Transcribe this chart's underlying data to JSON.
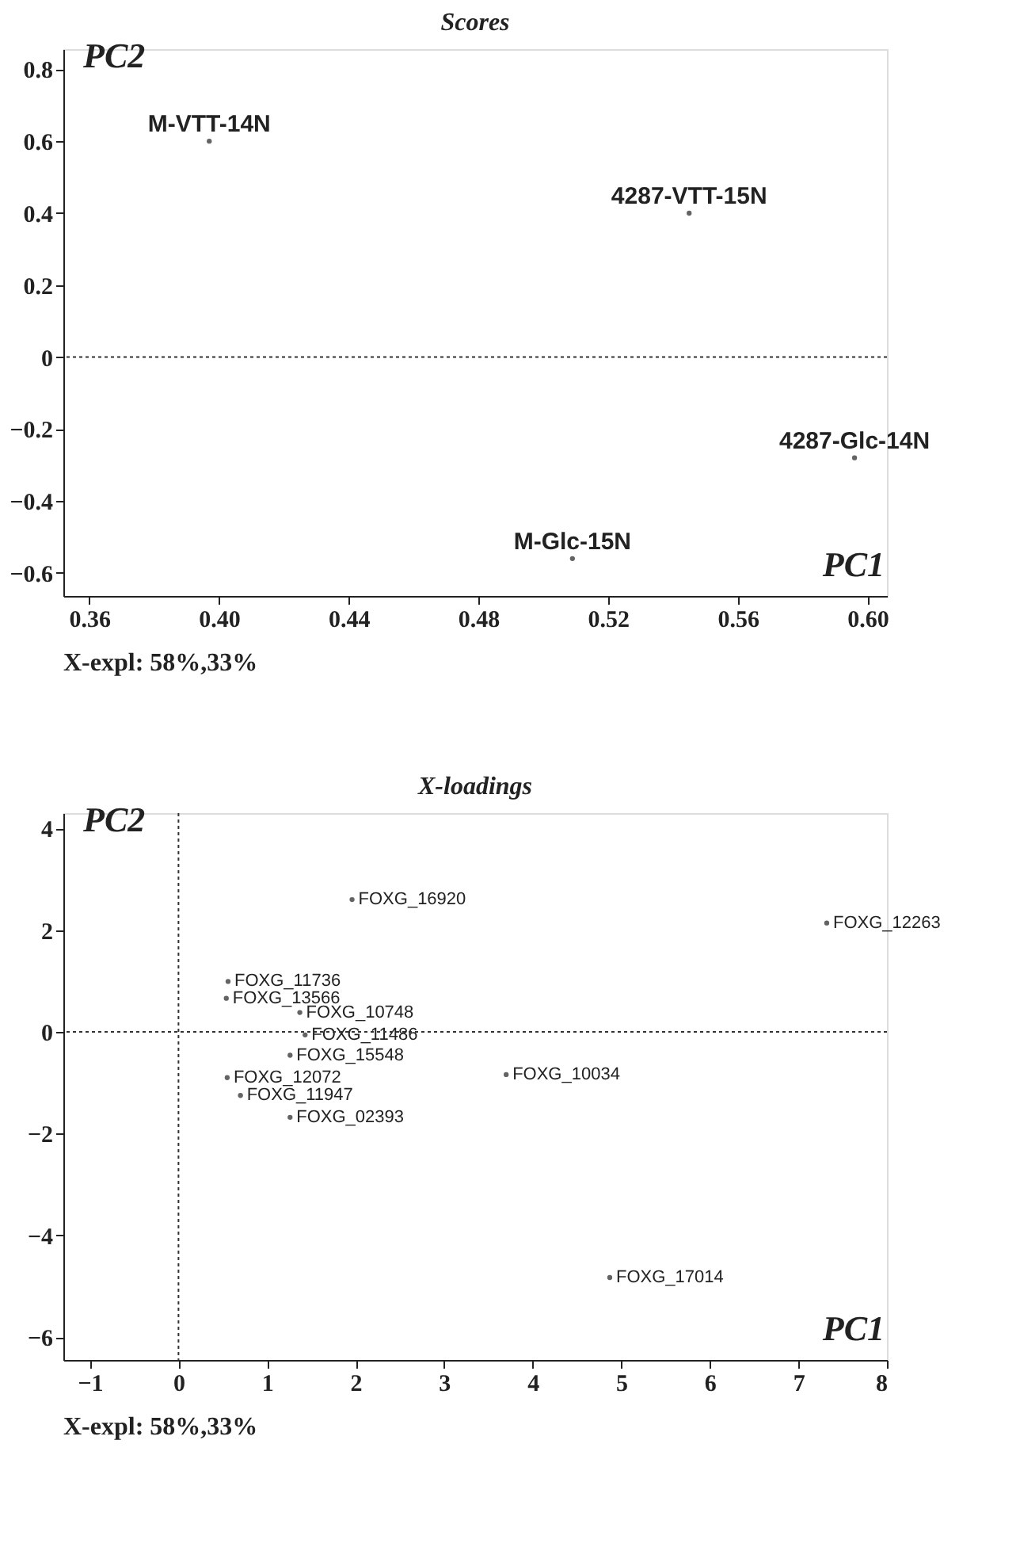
{
  "chart_data": [
    {
      "type": "scatter",
      "title": "Scores",
      "xlabel": "PC1",
      "ylabel": "PC2",
      "marker": "circle",
      "grid": false,
      "color": "#222222",
      "series": [
        {
          "name": "M-VTT-14N",
          "x": [
            0.397
          ],
          "values": [
            0.6
          ]
        },
        {
          "name": "4287-VTT-15N",
          "x": [
            0.545
          ],
          "values": [
            0.4
          ]
        },
        {
          "name": "4287-Glc-14N",
          "x": [
            0.596
          ],
          "values": [
            -0.28
          ]
        },
        {
          "name": "M-Glc-15N",
          "x": [
            0.509
          ],
          "values": [
            -0.56
          ]
        }
      ],
      "xlim": [
        0.352,
        0.606
      ],
      "ylim": [
        -0.664,
        0.856
      ],
      "xticks": [
        0.36,
        {
          "value": 0.4,
          "label": "0.40"
        },
        0.44,
        0.48,
        0.52,
        0.56,
        {
          "value": 0.6,
          "label": "0.60"
        }
      ],
      "yticks": [
        -0.6,
        -0.4,
        -0.2,
        {
          "value": 0,
          "label": "0"
        },
        0.2,
        0.4,
        0.6,
        0.8
      ],
      "ref_lines": [
        {
          "axis": "y",
          "value": 0,
          "label": null,
          "line_style": "dotted"
        }
      ],
      "annotations": [
        "X-expl: 58%,33%"
      ]
    },
    {
      "type": "scatter",
      "title": "X-loadings",
      "xlabel": "PC1",
      "ylabel": "PC2",
      "marker": "circle",
      "grid": false,
      "color": "#222222",
      "series": [
        {
          "name": "FOXG_16920",
          "x": [
            1.96
          ],
          "values": [
            2.6
          ]
        },
        {
          "name": "FOXG_12263",
          "x": [
            7.32
          ],
          "values": [
            2.14
          ]
        },
        {
          "name": "FOXG_10034",
          "x": [
            3.7
          ],
          "values": [
            -0.84
          ]
        },
        {
          "name": "FOXG_17014",
          "x": [
            4.87
          ],
          "values": [
            -4.83
          ]
        },
        {
          "name": "FOXG_02393",
          "x": [
            1.26
          ],
          "values": [
            -1.68
          ]
        },
        {
          "name": "FOXG_11736",
          "x": [
            0.56
          ],
          "values": [
            0.99
          ]
        },
        {
          "name": "FOXG_13566",
          "x": [
            0.54
          ],
          "values": [
            0.66
          ]
        },
        {
          "name": "FOXG_10748",
          "x": [
            1.37
          ],
          "values": [
            0.38
          ]
        },
        {
          "name": "FOXG_11486",
          "x": [
            1.43
          ],
          "values": [
            -0.06
          ]
        },
        {
          "name": "FOXG_15548",
          "x": [
            1.26
          ],
          "values": [
            -0.46
          ]
        },
        {
          "name": "FOXG_12072",
          "x": [
            0.55
          ],
          "values": [
            -0.9
          ]
        },
        {
          "name": "FOXG_11947",
          "x": [
            0.7
          ],
          "values": [
            -1.25
          ]
        }
      ],
      "xlim": [
        -1.3,
        8
      ],
      "ylim": [
        -6.45,
        4.3
      ],
      "xticks": [
        -1,
        0,
        1,
        2,
        3,
        4,
        5,
        6,
        7,
        8
      ],
      "yticks": [
        -6,
        -4,
        -2,
        0,
        2,
        4
      ],
      "ref_lines": [
        {
          "axis": "y",
          "value": 0,
          "label": null,
          "line_style": "dotted"
        },
        {
          "axis": "x",
          "value": 0,
          "label": null,
          "line_style": "dotted"
        }
      ],
      "annotations": [
        "X-expl: 58%,33%"
      ]
    }
  ]
}
